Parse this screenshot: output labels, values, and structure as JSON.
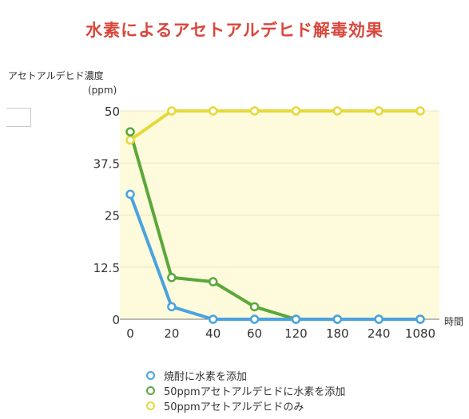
{
  "chart_data": {
    "type": "line",
    "title": "水素によるアセトアルデヒド解毒効果",
    "ylabel": "アセトアルデヒド濃度",
    "yunit": "(ppm)",
    "xlabel": "時間",
    "categories": [
      "0",
      "20",
      "40",
      "60",
      "120",
      "180",
      "240",
      "1080"
    ],
    "yticks": [
      "0",
      "12.5",
      "25",
      "37.5",
      "50"
    ],
    "ylim": [
      0,
      50
    ],
    "grid": true,
    "legend_position": "bottom",
    "series": [
      {
        "name": "50ppmアセトアルデヒドのみ",
        "color": "#e5d93a",
        "values": [
          43,
          50,
          50,
          50,
          50,
          50,
          50,
          50
        ]
      },
      {
        "name": "50ppmアセトアルデヒドに水素を添加",
        "color": "#5aa83a",
        "values": [
          45,
          10,
          9,
          3,
          0,
          0,
          0,
          0
        ]
      },
      {
        "name": "焼酎に水素を添加",
        "color": "#4aa3df",
        "values": [
          30,
          3,
          0,
          0,
          0,
          0,
          0,
          0
        ]
      }
    ],
    "legend": [
      {
        "label": "焼酎に水素を添加",
        "color": "#4aa3df"
      },
      {
        "label": "50ppmアセトアルデヒドに水素を添加",
        "color": "#5aa83a"
      },
      {
        "label": "50ppmアセトアルデヒドのみ",
        "color": "#e5d93a"
      }
    ],
    "plot_background": "#fdfbdc"
  }
}
